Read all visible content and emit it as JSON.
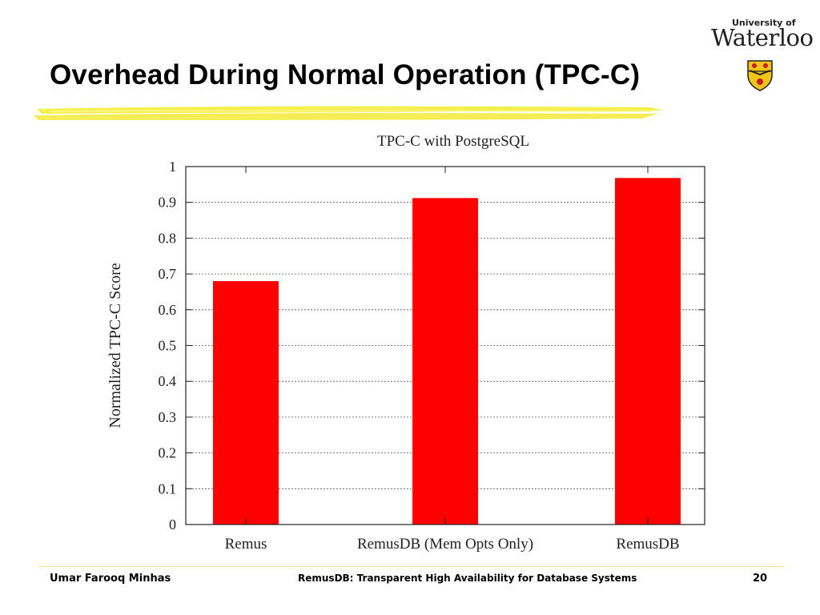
{
  "slide": {
    "title": "Overhead During Normal Operation (TPC-C)"
  },
  "logo": {
    "university_of": "University of",
    "name": "Waterloo"
  },
  "chart_data": {
    "type": "bar",
    "title": "TPC-C with PostgreSQL",
    "ylabel": "Normalized TPC-C Score",
    "xlabel": "",
    "categories": [
      "Remus",
      "RemusDB (Mem Opts Only)",
      "RemusDB"
    ],
    "values": [
      0.68,
      0.912,
      0.968
    ],
    "ylim": [
      0,
      1
    ],
    "yticks": [
      0,
      0.1,
      0.2,
      0.3,
      0.4,
      0.5,
      0.6,
      0.7,
      0.8,
      0.9,
      1
    ],
    "ytick_labels": [
      "0",
      "0.1",
      "0.2",
      "0.3",
      "0.4",
      "0.5",
      "0.6",
      "0.7",
      "0.8",
      "0.9",
      "1"
    ],
    "grid": true,
    "bar_color": "#ff0000"
  },
  "footer": {
    "author": "Umar Farooq Minhas",
    "subject": "RemusDB: Transparent High Availability for Database Systems",
    "page_number": "20"
  },
  "colors": {
    "highlight": "#f5ee3c",
    "bar": "#ff0000"
  }
}
